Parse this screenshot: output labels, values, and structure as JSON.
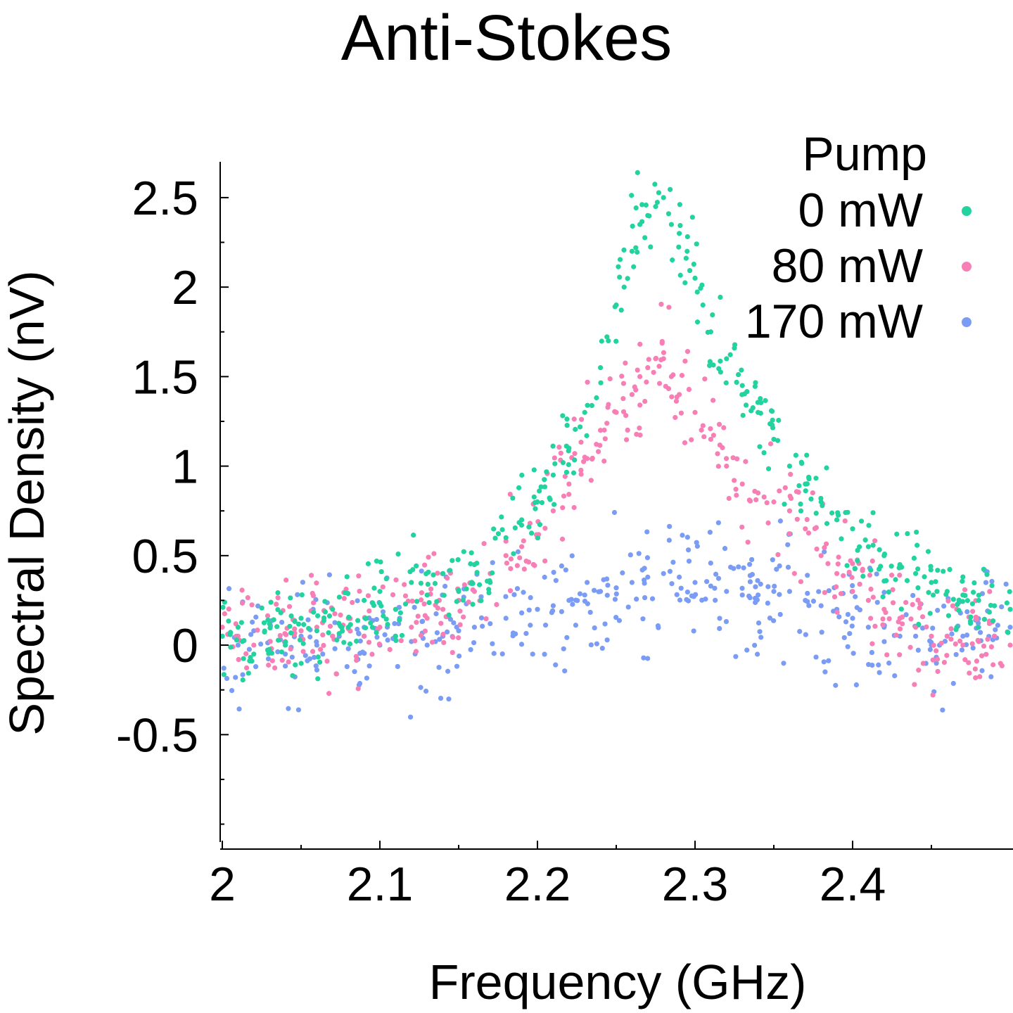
{
  "chart_data": {
    "type": "scatter",
    "title": "Anti-Stokes",
    "xlabel": "Frequency (GHz)",
    "ylabel": "Spectral Density (nV)",
    "xlim": [
      2.0,
      2.5
    ],
    "ylim": [
      -1.1,
      2.7
    ],
    "x_ticks": [
      2,
      2.1,
      2.2,
      2.3,
      2.4
    ],
    "x_tick_labels": [
      "2",
      "2.1",
      "2.2",
      "2.3",
      "2.4"
    ],
    "y_ticks": [
      -0.5,
      0,
      0.5,
      1,
      1.5,
      2,
      2.5
    ],
    "y_tick_labels": [
      "-0.5",
      "0",
      "0.5",
      "1",
      "1.5",
      "2",
      "2.5"
    ],
    "grid": false,
    "legend": {
      "title": "Pump",
      "placement": "top-right"
    },
    "series": [
      {
        "name": "0 mW",
        "color": "#22d3a0",
        "x": [
          2.0,
          2.01,
          2.02,
          2.03,
          2.04,
          2.05,
          2.06,
          2.07,
          2.08,
          2.09,
          2.1,
          2.11,
          2.12,
          2.13,
          2.14,
          2.15,
          2.16,
          2.17,
          2.18,
          2.19,
          2.2,
          2.21,
          2.22,
          2.23,
          2.24,
          2.245,
          2.25,
          2.255,
          2.26,
          2.265,
          2.27,
          2.275,
          2.28,
          2.285,
          2.29,
          2.295,
          2.3,
          2.305,
          2.31,
          2.32,
          2.33,
          2.34,
          2.35,
          2.36,
          2.37,
          2.38,
          2.39,
          2.4,
          2.41,
          2.42,
          2.43,
          2.44,
          2.45,
          2.46,
          2.47,
          2.48,
          2.49,
          2.5
        ],
        "y": [
          0.05,
          0.1,
          -0.05,
          0.12,
          0.0,
          0.15,
          0.08,
          0.2,
          0.1,
          0.25,
          0.3,
          0.2,
          0.35,
          0.28,
          0.4,
          0.3,
          0.45,
          0.35,
          0.6,
          0.7,
          0.8,
          0.95,
          1.1,
          1.3,
          1.55,
          1.7,
          1.9,
          2.0,
          2.2,
          2.35,
          2.4,
          2.45,
          2.5,
          2.35,
          2.3,
          2.2,
          2.05,
          1.9,
          1.75,
          1.6,
          1.45,
          1.3,
          1.15,
          1.0,
          0.9,
          0.8,
          0.7,
          0.65,
          0.55,
          0.5,
          0.45,
          0.4,
          0.35,
          0.3,
          0.28,
          0.25,
          0.22,
          0.2
        ]
      },
      {
        "name": "80 mW",
        "color": "#f77fb5",
        "x": [
          2.0,
          2.01,
          2.02,
          2.03,
          2.04,
          2.05,
          2.06,
          2.07,
          2.08,
          2.09,
          2.1,
          2.11,
          2.12,
          2.13,
          2.14,
          2.15,
          2.16,
          2.17,
          2.18,
          2.19,
          2.2,
          2.21,
          2.22,
          2.23,
          2.24,
          2.25,
          2.26,
          2.265,
          2.27,
          2.275,
          2.28,
          2.285,
          2.29,
          2.3,
          2.31,
          2.32,
          2.33,
          2.34,
          2.35,
          2.36,
          2.37,
          2.38,
          2.39,
          2.4,
          2.41,
          2.42,
          2.43,
          2.44,
          2.45,
          2.46,
          2.47,
          2.48,
          2.49,
          2.5
        ],
        "y": [
          0.1,
          0.05,
          0.0,
          0.12,
          0.02,
          0.08,
          0.1,
          0.05,
          0.15,
          0.05,
          0.1,
          0.2,
          0.1,
          0.15,
          0.2,
          0.25,
          0.3,
          0.4,
          0.5,
          0.55,
          0.6,
          0.75,
          0.9,
          1.05,
          1.2,
          1.3,
          1.4,
          1.5,
          1.55,
          1.6,
          1.6,
          1.5,
          1.4,
          1.3,
          1.15,
          1.0,
          0.9,
          0.85,
          0.8,
          0.75,
          0.65,
          0.5,
          0.4,
          0.3,
          0.25,
          0.2,
          0.15,
          0.1,
          0.05,
          0.05,
          0.0,
          0.02,
          0.05,
          0.0
        ]
      },
      {
        "name": "170 mW",
        "color": "#7b9cf5",
        "x": [
          2.0,
          2.01,
          2.02,
          2.03,
          2.04,
          2.05,
          2.06,
          2.07,
          2.08,
          2.09,
          2.1,
          2.11,
          2.12,
          2.13,
          2.14,
          2.15,
          2.16,
          2.17,
          2.18,
          2.19,
          2.2,
          2.21,
          2.22,
          2.23,
          2.24,
          2.25,
          2.26,
          2.27,
          2.28,
          2.29,
          2.3,
          2.31,
          2.32,
          2.33,
          2.34,
          2.35,
          2.36,
          2.37,
          2.38,
          2.39,
          2.4,
          2.41,
          2.42,
          2.43,
          2.44,
          2.45,
          2.46,
          2.47,
          2.48,
          2.49,
          2.5
        ],
        "y": [
          0.05,
          0.0,
          0.08,
          0.02,
          -0.05,
          0.05,
          0.0,
          0.05,
          -0.02,
          0.05,
          0.0,
          0.05,
          0.02,
          0.0,
          0.05,
          0.08,
          0.1,
          0.12,
          0.15,
          0.18,
          0.2,
          0.22,
          0.25,
          0.28,
          0.3,
          0.32,
          0.35,
          0.38,
          0.4,
          0.38,
          0.35,
          0.33,
          0.3,
          0.28,
          0.28,
          0.3,
          0.3,
          0.25,
          0.22,
          0.2,
          0.15,
          0.1,
          0.1,
          0.05,
          0.05,
          0.0,
          0.05,
          0.05,
          0.1,
          0.05,
          0.1
        ]
      }
    ]
  }
}
